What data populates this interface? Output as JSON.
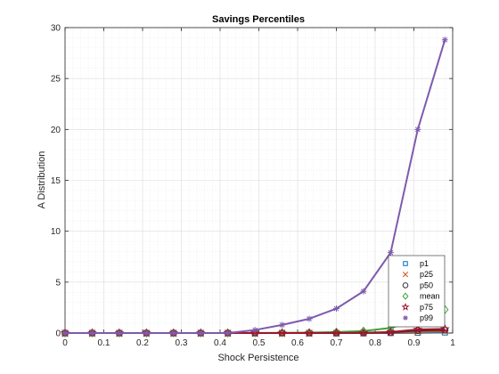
{
  "chart_data": {
    "type": "line",
    "title": "Savings Percentiles",
    "xlabel": "Shock Persistence",
    "ylabel": "A Distribution",
    "xlim": [
      0,
      1
    ],
    "ylim": [
      0,
      30
    ],
    "xticks": [
      "0",
      "0.1",
      "0.2",
      "0.3",
      "0.4",
      "0.5",
      "0.6",
      "0.7",
      "0.8",
      "0.9",
      "1"
    ],
    "yticks": [
      "0",
      "5",
      "10",
      "15",
      "20",
      "25",
      "30"
    ],
    "grid": true,
    "legend_position": "bottom-right",
    "x": [
      0.0,
      0.07,
      0.14,
      0.21,
      0.28,
      0.35,
      0.42,
      0.49,
      0.56,
      0.63,
      0.7,
      0.77,
      0.84,
      0.91,
      0.98
    ],
    "series": [
      {
        "name": "p1",
        "marker": "square",
        "color": "#0072BD",
        "values": [
          0,
          0,
          0,
          0,
          0,
          0,
          0,
          0,
          0,
          0,
          0,
          0,
          0,
          0.02,
          0.05
        ]
      },
      {
        "name": "p25",
        "marker": "x",
        "color": "#D95319",
        "values": [
          0,
          0,
          0,
          0,
          0,
          0,
          0,
          0,
          0,
          0,
          0,
          0,
          0.02,
          0.1,
          0.15
        ]
      },
      {
        "name": "p50",
        "marker": "circle",
        "color": "#333333",
        "values": [
          0,
          0,
          0,
          0,
          0,
          0,
          0,
          0,
          0,
          0,
          0,
          0.01,
          0.05,
          0.25,
          0.3
        ]
      },
      {
        "name": "mean",
        "marker": "diamond",
        "color": "#3CA33C",
        "values": [
          0,
          0,
          0,
          0,
          0,
          0,
          0,
          0.01,
          0.02,
          0.04,
          0.1,
          0.2,
          0.5,
          1.3,
          2.3
        ]
      },
      {
        "name": "p75",
        "marker": "pentagram",
        "color": "#A2142F",
        "values": [
          0,
          0,
          0,
          0,
          0,
          0,
          0,
          0,
          0,
          0,
          0.01,
          0.03,
          0.1,
          0.35,
          0.4
        ]
      },
      {
        "name": "p99",
        "marker": "asterisk",
        "color": "#7E5AAE",
        "values": [
          0,
          0,
          0,
          0,
          0,
          0,
          0,
          0.3,
          0.8,
          1.4,
          2.4,
          4.1,
          7.9,
          20.0,
          28.8
        ]
      }
    ]
  }
}
